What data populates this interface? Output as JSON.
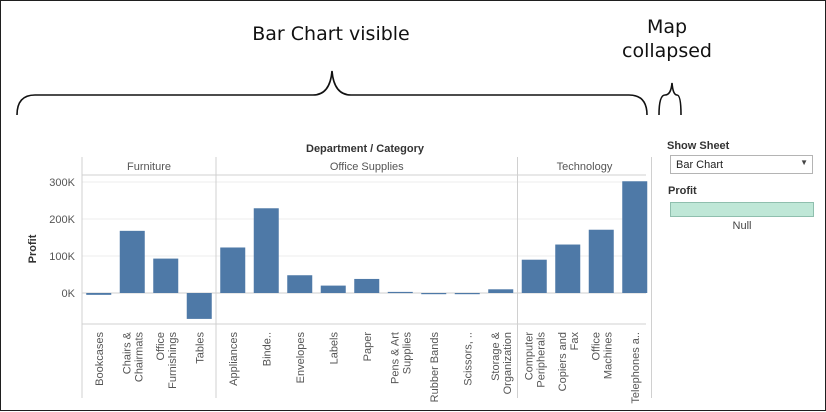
{
  "annotations": {
    "bar_chart_visible": "Bar Chart visible",
    "map_collapsed_line1": "Map",
    "map_collapsed_line2": "collapsed"
  },
  "controls": {
    "show_sheet_label": "Show Sheet",
    "show_sheet_value": "Bar Chart",
    "profit_legend_label": "Profit",
    "profit_legend_null": "Null",
    "legend_color": "#bfe7d7"
  },
  "chart_data": {
    "type": "bar",
    "title": "Department / Category",
    "ylabel": "Profit",
    "xlabel": "",
    "ylim": [
      -85000,
      320000
    ],
    "yticks": [
      {
        "value": 300000,
        "label": "300K"
      },
      {
        "value": 200000,
        "label": "200K"
      },
      {
        "value": 100000,
        "label": "100K"
      },
      {
        "value": 0,
        "label": "0K"
      }
    ],
    "bar_color": "#4e79a7",
    "departments": [
      {
        "name": "Furniture",
        "categories": [
          {
            "label": "Bookcases",
            "value": -5000
          },
          {
            "label": "Chairs &\nChairmats",
            "value": 168000
          },
          {
            "label": "Office\nFurnishings",
            "value": 93000
          },
          {
            "label": "Tables",
            "value": -70000
          }
        ]
      },
      {
        "name": "Office Supplies",
        "categories": [
          {
            "label": "Appliances",
            "value": 123000
          },
          {
            "label": "Binde..",
            "value": 229000
          },
          {
            "label": "Envelopes",
            "value": 48000
          },
          {
            "label": "Labels",
            "value": 20000
          },
          {
            "label": "Paper",
            "value": 38000
          },
          {
            "label": "Pens & Art\nSupplies",
            "value": 3000
          },
          {
            "label": "Rubber Bands",
            "value": -1500
          },
          {
            "label": "Scissors, ..",
            "value": -2000
          },
          {
            "label": "Storage &\nOrganization",
            "value": 10000
          }
        ]
      },
      {
        "name": "Technology",
        "categories": [
          {
            "label": "Computer\nPeripherals",
            "value": 90000
          },
          {
            "label": "Copiers and\nFax",
            "value": 131000
          },
          {
            "label": "Office\nMachines",
            "value": 171000
          },
          {
            "label": "Telephones a..",
            "value": 302000
          }
        ]
      }
    ]
  }
}
